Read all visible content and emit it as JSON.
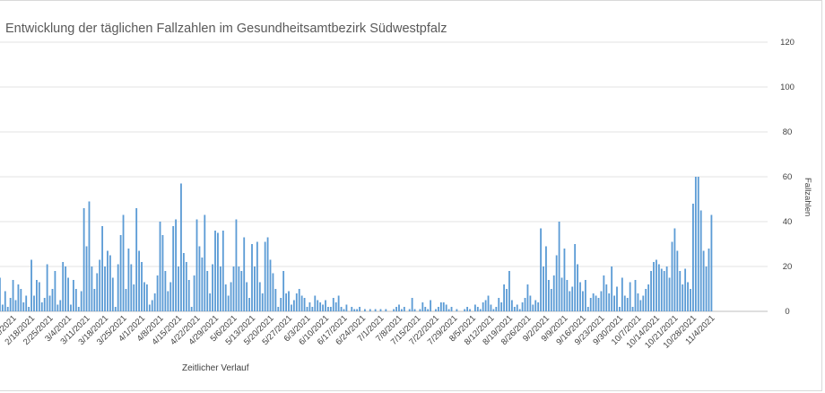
{
  "chart_data": {
    "type": "bar",
    "title": "Entwicklung der täglichen Fallzahlen im Gesundheitsamtbezirk Südwestpfalz",
    "xlabel": "Zeitlicher Verlauf",
    "ylabel": "Fallzahlen",
    "ylim": [
      0,
      120
    ],
    "y_ticks": [
      0,
      20,
      40,
      60,
      80,
      100,
      120
    ],
    "y_axis_position": "right",
    "grid": true,
    "color": "#5b9bd5",
    "x_tick_labels": [
      "2/4/2021",
      "2/11/2021",
      "2/18/2021",
      "2/25/2021",
      "3/4/2021",
      "3/11/2021",
      "3/18/2021",
      "3/25/2021",
      "4/1/2021",
      "4/8/2021",
      "4/15/2021",
      "4/22/2021",
      "4/29/2021",
      "5/6/2021",
      "5/13/2021",
      "5/20/2021",
      "5/27/2021",
      "6/3/2021",
      "6/10/2021",
      "6/17/2021",
      "6/24/2021",
      "7/1/2021",
      "7/8/2021",
      "7/15/2021",
      "7/22/2021",
      "7/29/2021",
      "8/5/2021",
      "8/12/2021",
      "8/19/2021",
      "8/26/2021",
      "9/2/2021",
      "9/9/2021",
      "9/16/2021",
      "9/23/2021",
      "9/30/2021",
      "10/7/2021",
      "10/14/2021",
      "10/21/2021",
      "10/28/2021",
      "11/4/2021"
    ],
    "start_date": "2021-02-02",
    "values": [
      5,
      14,
      17,
      12,
      15,
      3,
      9,
      2,
      6,
      14,
      5,
      12,
      10,
      4,
      7,
      2,
      23,
      7,
      14,
      13,
      4,
      6,
      21,
      7,
      10,
      18,
      3,
      5,
      22,
      20,
      15,
      3,
      14,
      10,
      2,
      9,
      46,
      29,
      49,
      20,
      10,
      17,
      23,
      38,
      20,
      27,
      25,
      15,
      2,
      21,
      34,
      43,
      10,
      28,
      21,
      12,
      46,
      27,
      22,
      13,
      12,
      3,
      5,
      8,
      16,
      40,
      34,
      18,
      9,
      13,
      38,
      41,
      20,
      57,
      26,
      22,
      14,
      2,
      16,
      41,
      29,
      24,
      43,
      18,
      8,
      21,
      36,
      35,
      20,
      36,
      12,
      7,
      13,
      20,
      41,
      20,
      18,
      33,
      13,
      6,
      30,
      20,
      31,
      13,
      8,
      31,
      33,
      23,
      17,
      10,
      2,
      6,
      18,
      8,
      9,
      3,
      5,
      8,
      10,
      7,
      6,
      2,
      4,
      2,
      7,
      5,
      4,
      3,
      5,
      2,
      2,
      6,
      4,
      7,
      2,
      1,
      3,
      0,
      2,
      1,
      1,
      2,
      0,
      1,
      0,
      1,
      0,
      1,
      0,
      1,
      0,
      1,
      0,
      0,
      1,
      2,
      3,
      1,
      2,
      0,
      1,
      6,
      1,
      0,
      1,
      4,
      2,
      1,
      5,
      0,
      1,
      2,
      4,
      4,
      3,
      1,
      2,
      0,
      1,
      0,
      0,
      1,
      2,
      1,
      0,
      3,
      2,
      1,
      4,
      5,
      7,
      3,
      1,
      2,
      6,
      4,
      12,
      10,
      18,
      5,
      2,
      3,
      1,
      4,
      6,
      12,
      7,
      3,
      5,
      4,
      37,
      20,
      29,
      14,
      10,
      16,
      25,
      40,
      15,
      28,
      14,
      9,
      11,
      30,
      21,
      13,
      9,
      14,
      2,
      6,
      8,
      7,
      6,
      9,
      16,
      12,
      8,
      20,
      7,
      11,
      2,
      15,
      7,
      6,
      13,
      2,
      14,
      8,
      5,
      7,
      10,
      12,
      18,
      22,
      23,
      21,
      19,
      18,
      20,
      15,
      31,
      37,
      27,
      18,
      12,
      19,
      13,
      10,
      48,
      60,
      60,
      45,
      27,
      20,
      28,
      43
    ]
  }
}
